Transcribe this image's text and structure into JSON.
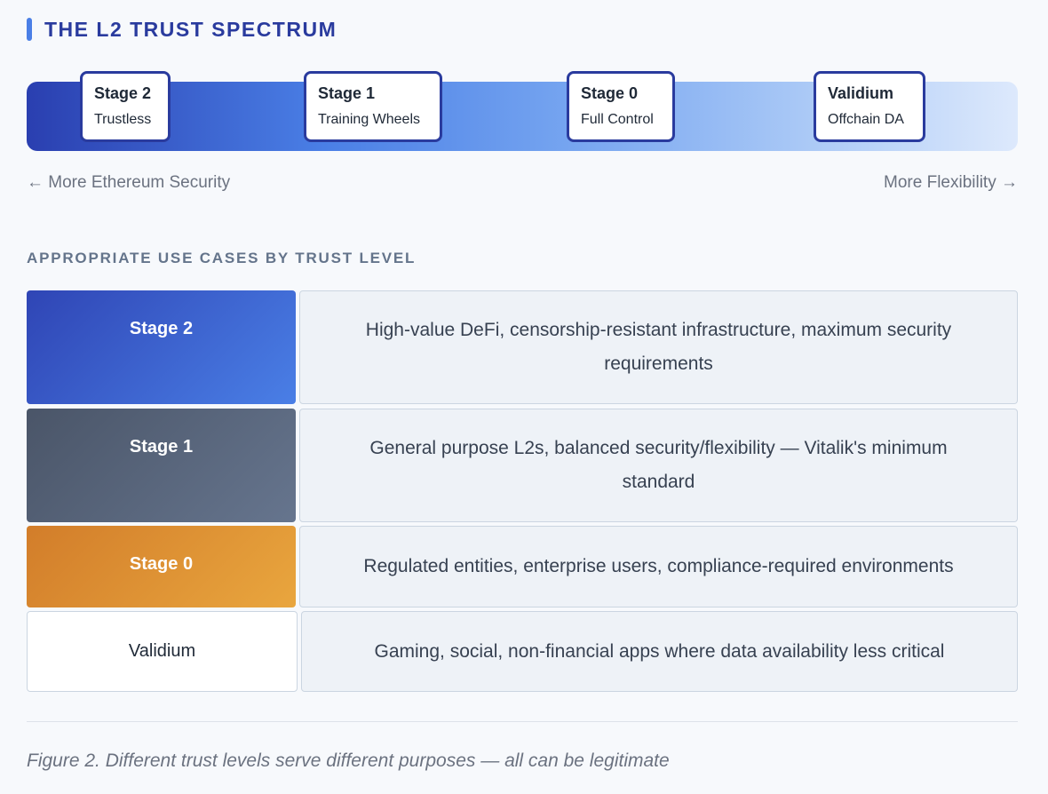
{
  "header": {
    "title": "THE L2 TRUST SPECTRUM"
  },
  "spectrum": {
    "markers": [
      {
        "name": "Stage 2",
        "sub": "Trustless"
      },
      {
        "name": "Stage 1",
        "sub": "Training Wheels"
      },
      {
        "name": "Stage 0",
        "sub": "Full Control"
      },
      {
        "name": "Validium",
        "sub": "Offchain DA"
      }
    ],
    "left_label": "← More Ethereum Security",
    "right_label": "More Flexibility →"
  },
  "use_cases": {
    "title": "APPROPRIATE USE CASES BY TRUST LEVEL",
    "rows": [
      [
        "Stage 2",
        "High-value DeFi, censorship-resistant infrastructure, maximum security requirements"
      ],
      [
        "Stage 1",
        "General purpose L2s, balanced security/flexibility — Vitalik's minimum standard"
      ],
      [
        "Stage 0",
        "Regulated entities, enterprise users, compliance-required environments"
      ],
      [
        "Validium",
        "Gaming, social, non-financial apps where data availability less critical"
      ]
    ]
  },
  "caption": "Figure 2. Different trust levels serve different purposes — all can be legitimate"
}
